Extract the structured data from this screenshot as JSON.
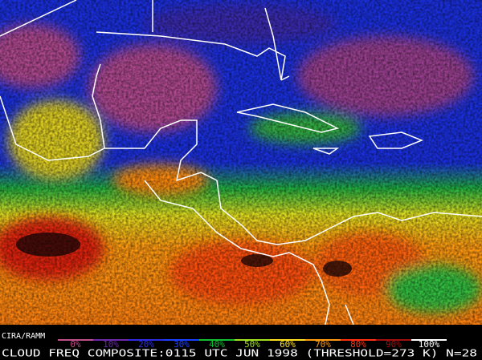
{
  "credit": "CIRA/RAMM",
  "colorbar": {
    "labels": [
      "0%",
      "10%",
      "20%",
      "30%",
      "40%",
      "50%",
      "60%",
      "70%",
      "80%",
      "90%",
      "100%"
    ],
    "colors": [
      "#c0508a",
      "#6a2aa8",
      "#2c2ce0",
      "#1a40ff",
      "#10c030",
      "#a0e020",
      "#ffe020",
      "#ff9a10",
      "#ff3010",
      "#a01010",
      "#ffffff"
    ]
  },
  "caption": "CLOUD FREQ COMPOSITE:0115 UTC JUN 1998 (THRESHOLD=273 K) N=28"
}
